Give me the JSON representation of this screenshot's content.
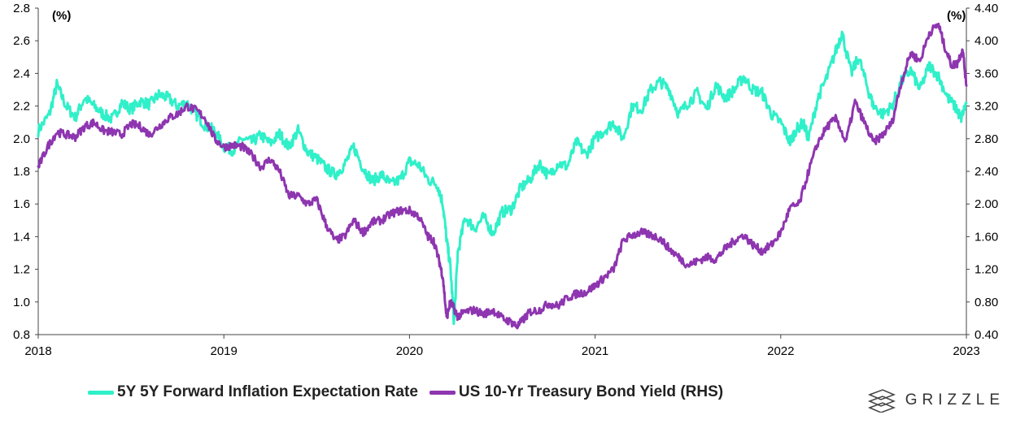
{
  "chart_data": {
    "type": "line",
    "title": "",
    "left_axis": {
      "unit": "(%)",
      "ylim": [
        0.8,
        2.8
      ],
      "ticks": [
        "0.8",
        "1.0",
        "1.2",
        "1.4",
        "1.6",
        "1.8",
        "2.0",
        "2.2",
        "2.4",
        "2.6",
        "2.8"
      ]
    },
    "right_axis": {
      "unit": "(%)",
      "ylim": [
        0.4,
        4.4
      ],
      "ticks": [
        "0.40",
        "0.80",
        "1.20",
        "1.60",
        "2.00",
        "2.40",
        "2.80",
        "3.20",
        "3.60",
        "4.00",
        "4.40"
      ]
    },
    "x_axis": {
      "xlim": [
        2018.0,
        2023.0
      ],
      "ticks": [
        "2018",
        "2019",
        "2020",
        "2021",
        "2022",
        "2023"
      ]
    },
    "grid": false,
    "series": [
      {
        "name": "5Y 5Y Forward Inflation Expectation Rate",
        "axis": "left",
        "color": "#2ff0c9",
        "x": [
          2018.0,
          2018.06,
          2018.1,
          2018.15,
          2018.2,
          2018.25,
          2018.3,
          2018.35,
          2018.4,
          2018.45,
          2018.5,
          2018.55,
          2018.6,
          2018.65,
          2018.7,
          2018.75,
          2018.8,
          2018.85,
          2018.9,
          2018.95,
          2019.0,
          2019.05,
          2019.1,
          2019.15,
          2019.2,
          2019.25,
          2019.3,
          2019.35,
          2019.4,
          2019.45,
          2019.5,
          2019.55,
          2019.6,
          2019.65,
          2019.7,
          2019.75,
          2019.8,
          2019.85,
          2019.9,
          2019.95,
          2020.0,
          2020.05,
          2020.1,
          2020.15,
          2020.18,
          2020.2,
          2020.22,
          2020.24,
          2020.26,
          2020.3,
          2020.35,
          2020.4,
          2020.45,
          2020.5,
          2020.55,
          2020.6,
          2020.65,
          2020.7,
          2020.75,
          2020.8,
          2020.85,
          2020.9,
          2020.95,
          2021.0,
          2021.05,
          2021.1,
          2021.15,
          2021.2,
          2021.25,
          2021.3,
          2021.35,
          2021.4,
          2021.45,
          2021.5,
          2021.55,
          2021.6,
          2021.65,
          2021.7,
          2021.75,
          2021.8,
          2021.85,
          2021.9,
          2021.95,
          2022.0,
          2022.05,
          2022.08,
          2022.12,
          2022.15,
          2022.2,
          2022.25,
          2022.3,
          2022.33,
          2022.38,
          2022.42,
          2022.47,
          2022.5,
          2022.55,
          2022.6,
          2022.65,
          2022.7,
          2022.75,
          2022.8,
          2022.85,
          2022.9,
          2022.95,
          2022.97,
          2023.0
        ],
        "values": [
          2.05,
          2.15,
          2.33,
          2.2,
          2.13,
          2.25,
          2.2,
          2.15,
          2.12,
          2.22,
          2.18,
          2.23,
          2.21,
          2.27,
          2.25,
          2.2,
          2.22,
          2.15,
          2.08,
          2.05,
          1.95,
          1.93,
          2.0,
          1.98,
          2.02,
          1.97,
          2.03,
          1.95,
          2.05,
          1.92,
          1.88,
          1.82,
          1.78,
          1.84,
          1.95,
          1.82,
          1.74,
          1.78,
          1.72,
          1.75,
          1.86,
          1.84,
          1.75,
          1.72,
          1.6,
          1.38,
          1.22,
          0.87,
          1.3,
          1.52,
          1.45,
          1.52,
          1.42,
          1.55,
          1.57,
          1.7,
          1.75,
          1.85,
          1.77,
          1.85,
          1.83,
          1.98,
          1.9,
          2.0,
          2.05,
          2.1,
          2.0,
          2.2,
          2.18,
          2.3,
          2.35,
          2.3,
          2.15,
          2.22,
          2.28,
          2.18,
          2.33,
          2.25,
          2.3,
          2.38,
          2.3,
          2.28,
          2.15,
          2.1,
          1.98,
          2.05,
          2.1,
          2.0,
          2.25,
          2.38,
          2.55,
          2.65,
          2.4,
          2.5,
          2.3,
          2.2,
          2.15,
          2.2,
          2.35,
          2.42,
          2.3,
          2.45,
          2.38,
          2.25,
          2.18,
          2.12,
          2.22
        ]
      },
      {
        "name": "US 10-Yr Treasury Bond Yield (RHS)",
        "axis": "right",
        "color": "#8e35b0",
        "x": [
          2018.0,
          2018.05,
          2018.1,
          2018.15,
          2018.2,
          2018.25,
          2018.3,
          2018.35,
          2018.4,
          2018.45,
          2018.5,
          2018.55,
          2018.6,
          2018.65,
          2018.7,
          2018.75,
          2018.8,
          2018.85,
          2018.9,
          2018.95,
          2019.0,
          2019.05,
          2019.1,
          2019.15,
          2019.2,
          2019.25,
          2019.3,
          2019.35,
          2019.4,
          2019.45,
          2019.5,
          2019.55,
          2019.6,
          2019.65,
          2019.7,
          2019.75,
          2019.8,
          2019.85,
          2019.9,
          2019.95,
          2020.0,
          2020.05,
          2020.1,
          2020.13,
          2020.16,
          2020.18,
          2020.2,
          2020.22,
          2020.24,
          2020.26,
          2020.3,
          2020.35,
          2020.4,
          2020.45,
          2020.5,
          2020.55,
          2020.58,
          2020.62,
          2020.65,
          2020.7,
          2020.75,
          2020.8,
          2020.85,
          2020.9,
          2020.95,
          2021.0,
          2021.05,
          2021.1,
          2021.15,
          2021.2,
          2021.25,
          2021.3,
          2021.35,
          2021.4,
          2021.45,
          2021.5,
          2021.55,
          2021.6,
          2021.65,
          2021.7,
          2021.75,
          2021.8,
          2021.85,
          2021.9,
          2021.95,
          2022.0,
          2022.05,
          2022.1,
          2022.15,
          2022.2,
          2022.25,
          2022.3,
          2022.35,
          2022.4,
          2022.45,
          2022.5,
          2022.55,
          2022.6,
          2022.65,
          2022.7,
          2022.75,
          2022.8,
          2022.85,
          2022.88,
          2022.92,
          2022.95,
          2022.98,
          2023.0
        ],
        "values": [
          2.45,
          2.7,
          2.88,
          2.85,
          2.82,
          2.95,
          3.0,
          2.9,
          2.88,
          2.85,
          2.98,
          2.95,
          2.85,
          2.95,
          3.05,
          3.1,
          3.2,
          3.15,
          3.05,
          2.8,
          2.7,
          2.72,
          2.7,
          2.6,
          2.45,
          2.55,
          2.4,
          2.1,
          2.1,
          2.0,
          2.05,
          1.75,
          1.55,
          1.6,
          1.8,
          1.65,
          1.78,
          1.8,
          1.88,
          1.92,
          1.92,
          1.85,
          1.6,
          1.55,
          1.3,
          1.1,
          0.6,
          0.8,
          0.72,
          0.62,
          0.68,
          0.7,
          0.65,
          0.7,
          0.6,
          0.55,
          0.5,
          0.6,
          0.68,
          0.7,
          0.78,
          0.75,
          0.85,
          0.9,
          0.92,
          1.0,
          1.1,
          1.2,
          1.55,
          1.62,
          1.65,
          1.62,
          1.58,
          1.45,
          1.35,
          1.25,
          1.3,
          1.35,
          1.32,
          1.45,
          1.55,
          1.62,
          1.5,
          1.42,
          1.5,
          1.65,
          1.95,
          2.0,
          2.4,
          2.75,
          2.95,
          3.05,
          2.75,
          3.25,
          3.0,
          2.75,
          2.85,
          3.0,
          3.5,
          3.85,
          3.75,
          4.1,
          4.2,
          3.95,
          3.7,
          3.72,
          3.9,
          3.45
        ]
      }
    ]
  },
  "legend": {
    "items": [
      {
        "label": "5Y 5Y Forward Inflation Expectation Rate",
        "color": "#2ff0c9"
      },
      {
        "label": "US 10-Yr Treasury Bond Yield (RHS)",
        "color": "#8e35b0"
      }
    ]
  },
  "brand": {
    "name": "GRIZZLE",
    "logo": "grizzle-logo-icon"
  }
}
